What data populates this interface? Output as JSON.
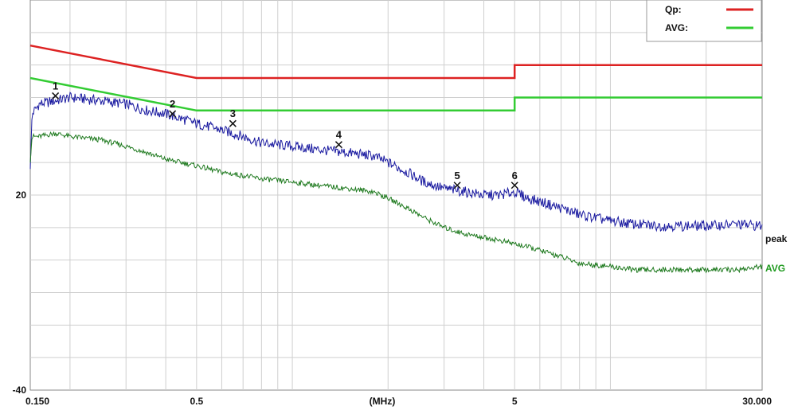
{
  "chart_data": {
    "type": "line",
    "title": "",
    "xlabel": "(MHz)",
    "ylabel": "",
    "x_scale": "log",
    "xlim": [
      0.15,
      30
    ],
    "ylim": [
      -40,
      80
    ],
    "grid": true,
    "legend_placement": "top-right",
    "y_tick_labels": [
      {
        "value": 20,
        "label": "20"
      },
      {
        "value": -40,
        "label": "-40"
      }
    ],
    "x_tick_labels": [
      {
        "value": 0.15,
        "label": "0.150"
      },
      {
        "value": 0.5,
        "label": "0.5"
      },
      {
        "value": 5,
        "label": "5"
      },
      {
        "value": 30,
        "label": "30.000"
      }
    ],
    "legend": [
      {
        "name": "Qp:",
        "color": "#dd2222"
      },
      {
        "name": "AVG:",
        "color": "#33cc33"
      }
    ],
    "trace_labels": {
      "peak": "peak",
      "avg": "AVG"
    },
    "limits": [
      {
        "name": "Qp",
        "color": "#dd2222",
        "x": [
          0.15,
          0.5,
          5,
          5,
          30
        ],
        "y": [
          66,
          56,
          56,
          60,
          60
        ]
      },
      {
        "name": "AVG",
        "color": "#33cc33",
        "x": [
          0.15,
          0.5,
          5,
          5,
          30
        ],
        "y": [
          56,
          46,
          46,
          50,
          50
        ]
      }
    ],
    "series": [
      {
        "key": "peak",
        "color": "#1a1aa0",
        "x": [
          0.15,
          0.152,
          0.16,
          0.18,
          0.2,
          0.25,
          0.3,
          0.35,
          0.4,
          0.5,
          0.6,
          0.7,
          0.8,
          1.0,
          1.2,
          1.5,
          1.8,
          2.0,
          2.3,
          2.6,
          3.0,
          3.5,
          4.0,
          4.5,
          5.0,
          5.5,
          6.0,
          7.0,
          8.0,
          10.0,
          12.0,
          14.0,
          16.0,
          20.0,
          25.0,
          30.0
        ],
        "y": [
          28,
          45,
          48,
          49,
          50,
          49,
          48,
          46,
          45,
          42,
          40,
          38,
          36,
          35,
          34,
          33,
          32,
          30,
          27,
          24,
          22,
          21,
          20,
          20,
          21,
          19,
          18,
          16,
          14,
          12,
          11,
          10.5,
          10.5,
          10.5,
          11,
          10.5
        ]
      },
      {
        "key": "avg",
        "color": "#1f7a1f",
        "x": [
          0.15,
          0.152,
          0.16,
          0.18,
          0.2,
          0.25,
          0.3,
          0.35,
          0.4,
          0.5,
          0.6,
          0.7,
          0.8,
          1.0,
          1.2,
          1.5,
          1.8,
          2.0,
          2.3,
          2.6,
          3.0,
          3.5,
          4.0,
          4.5,
          5.0,
          5.5,
          6.0,
          7.0,
          8.0,
          10.0,
          12.0,
          14.0,
          16.0,
          20.0,
          25.0,
          30.0
        ],
        "y": [
          30,
          38,
          38,
          39,
          38,
          37,
          35,
          33,
          31,
          29,
          27,
          26,
          25,
          24,
          23,
          22,
          21,
          19,
          16,
          13,
          10,
          8,
          7,
          6,
          5,
          4,
          3,
          1,
          -1,
          -2,
          -3,
          -3,
          -3,
          -3,
          -3,
          -2
        ]
      }
    ],
    "markers": [
      {
        "label": "1",
        "x": 0.18,
        "y": 50.5
      },
      {
        "label": "2",
        "x": 0.42,
        "y": 45
      },
      {
        "label": "3",
        "x": 0.65,
        "y": 42
      },
      {
        "label": "4",
        "x": 1.4,
        "y": 35.5
      },
      {
        "label": "5",
        "x": 3.3,
        "y": 23
      },
      {
        "label": "6",
        "x": 5.0,
        "y": 23
      }
    ]
  }
}
